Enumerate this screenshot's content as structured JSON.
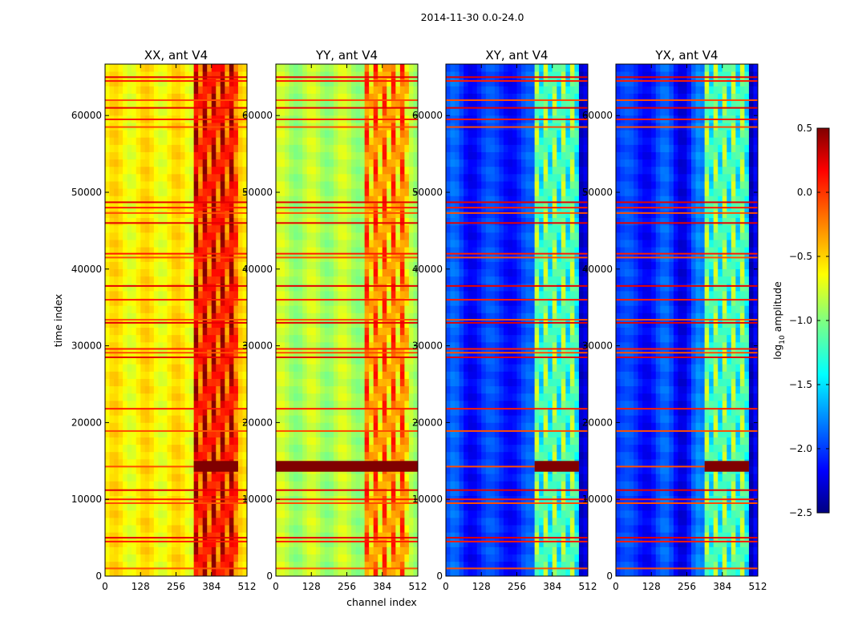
{
  "chart_data": {
    "type": "heatmap",
    "title": "2014-11-30 0.0-24.0",
    "xlabel": "channel index",
    "ylabel": "time index",
    "xlim": [
      0,
      512
    ],
    "ylim": [
      0,
      66700
    ],
    "x_ticks": [
      "0",
      "128",
      "256",
      "384",
      "512"
    ],
    "x_tick_values": [
      0,
      128,
      256,
      384,
      512
    ],
    "y_ticks": [
      "0",
      "10000",
      "20000",
      "30000",
      "40000",
      "50000",
      "60000"
    ],
    "y_tick_values": [
      0,
      10000,
      20000,
      30000,
      40000,
      50000,
      60000
    ],
    "colorbar": {
      "label_prefix": "log",
      "label_sub": "10",
      "label_suffix": " amplitude",
      "colormap": "jet",
      "range": [
        -2.5,
        0.5
      ],
      "ticks": [
        "0.5",
        "0.0",
        "−0.5",
        "−1.0",
        "−1.5",
        "−2.0",
        "−2.5"
      ],
      "tick_values": [
        0.5,
        0.0,
        -0.5,
        -1.0,
        -1.5,
        -2.0,
        -2.5
      ]
    },
    "saturated_time_band": [
      13600,
      15000
    ],
    "flagged_time_rows": [
      1000,
      4500,
      5000,
      9500,
      10000,
      11200,
      18900,
      21800,
      28500,
      29100,
      29600,
      33000,
      33400,
      36000,
      37800,
      41500,
      42000,
      46000,
      47300,
      48000,
      48700,
      58500,
      59500,
      61000,
      62000,
      64500,
      65000
    ],
    "bright_channel_range": [
      320,
      480
    ],
    "panels": [
      {
        "title": "XX, ant V4",
        "base_level": -0.6,
        "bright_level": 0.1
      },
      {
        "title": "YY, ant V4",
        "base_level": -0.85,
        "bright_level": -0.3
      },
      {
        "title": "XY, ant V4",
        "base_level": -2.0,
        "bright_level": -1.1
      },
      {
        "title": "YX, ant V4",
        "base_level": -2.0,
        "bright_level": -1.1
      }
    ]
  }
}
